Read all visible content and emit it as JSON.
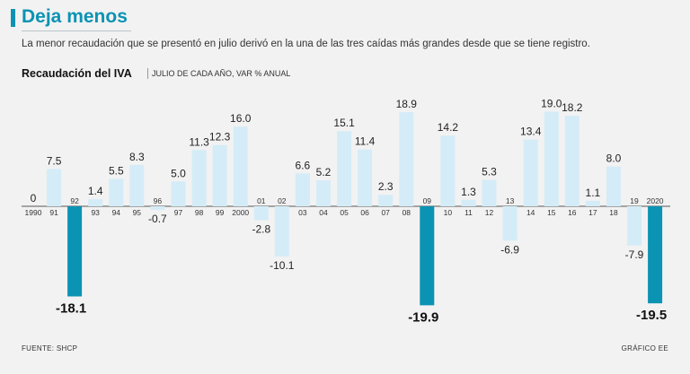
{
  "header": {
    "title": "Deja menos",
    "subtitle": "La menor recaudación que se presentó en julio derivó en la una de las tres caídas más grandes desde que se tiene registro."
  },
  "chart_title": "Recaudación del IVA",
  "chart_subtitle": "JULIO DE CADA AÑO, VAR % ANUAL",
  "footer": {
    "source": "FUENTE:  SHCP",
    "credit": "GRÁFICO EE"
  },
  "colors": {
    "accent": "#0b93b4",
    "bar_normal": "#d4ecf7",
    "bar_highlight": "#0b93b4"
  },
  "chart_data": {
    "type": "bar",
    "title": "Recaudación del IVA",
    "subtitle": "JULIO DE CADA AÑO, VAR % ANUAL",
    "categories": [
      "1990",
      "91",
      "92",
      "93",
      "94",
      "95",
      "96",
      "97",
      "98",
      "99",
      "2000",
      "01",
      "02",
      "03",
      "04",
      "05",
      "06",
      "07",
      "08",
      "09",
      "10",
      "11",
      "12",
      "13",
      "14",
      "15",
      "16",
      "17",
      "18",
      "19",
      "2020"
    ],
    "values": [
      0,
      7.5,
      -18.1,
      1.4,
      5.5,
      8.3,
      -0.7,
      5.0,
      11.3,
      12.3,
      16.0,
      -2.8,
      -10.1,
      6.6,
      5.2,
      15.1,
      11.4,
      2.3,
      18.9,
      -19.9,
      14.2,
      1.3,
      5.3,
      -6.9,
      13.4,
      19.0,
      18.2,
      1.1,
      8.0,
      -7.9,
      -19.5
    ],
    "labels": [
      "0",
      "7.5",
      "-18.1",
      "1.4",
      "5.5",
      "8.3",
      "-0.7",
      "5.0",
      "11.3",
      "12.3",
      "16.0",
      "-2.8",
      "-10.1",
      "6.6",
      "5.2",
      "15.1",
      "11.4",
      "2.3",
      "18.9",
      "-19.9",
      "14.2",
      "1.3",
      "5.3",
      "-6.9",
      "13.4",
      "19.0",
      "18.2",
      "1.1",
      "8.0",
      "-7.9",
      "-19.5"
    ],
    "highlighted": [
      "92",
      "09",
      "2020"
    ],
    "ylim": [
      -20,
      20
    ],
    "grid": false,
    "legend": "none"
  }
}
